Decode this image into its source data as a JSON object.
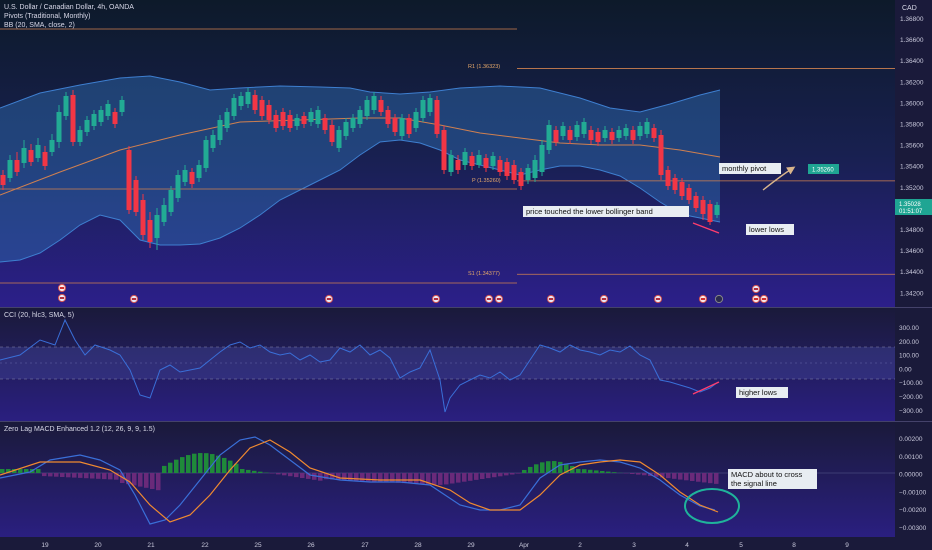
{
  "header": {
    "symbol": "U.S. Dollar / Canadian Dollar, 4h, OANDA",
    "pivots": "Pivots (Traditional, Monthly)",
    "bb": "BB (20, SMA, close, 2)",
    "currency": "CAD"
  },
  "price_axis": [
    "1.36800",
    "1.36600",
    "1.36400",
    "1.36200",
    "1.36000",
    "1.35800",
    "1.35600",
    "1.35400",
    "1.35200",
    "1.35000",
    "1.34800",
    "1.34600",
    "1.34400",
    "1.34200"
  ],
  "current_price": {
    "price": "1.35028",
    "countdown": "01:51:07"
  },
  "pivot_labels": {
    "r1": "R1 (1.36323)",
    "p": "P (1.35260)",
    "s1": "S1 (1.34377)"
  },
  "annotations": {
    "monthly_pivot": "monthly pivot",
    "target_price": "1.35260",
    "lower_band": "price touched the lower bollinger band",
    "lower_lows": "lower lows",
    "higher_lows": "higher lows",
    "macd_note_1": "MACD about to cross",
    "macd_note_2": "the signal line"
  },
  "cci_panel": {
    "title": "CCI (20, hlc3, SMA, 5)",
    "axis": [
      "300.00",
      "200.00",
      "100.00",
      "0.00",
      "−100.00",
      "−200.00",
      "−300.00"
    ]
  },
  "macd_panel": {
    "title": "Zero Lag MACD Enhanced 1.2 (12, 26, 9, 9, 1.5)",
    "axis": [
      "0.00200",
      "0.00100",
      "0.00000",
      "−0.00100",
      "−0.00200",
      "−0.00300"
    ]
  },
  "time_axis": [
    "19",
    "20",
    "21",
    "22",
    "25",
    "26",
    "27",
    "28",
    "29",
    "Apr",
    "2",
    "3",
    "4",
    "5",
    "8",
    "9"
  ],
  "chart_data": {
    "type": "line",
    "title": "U.S. Dollar / Canadian Dollar, 4h, OANDA",
    "x": [
      "19",
      "20",
      "21",
      "22",
      "25",
      "26",
      "27",
      "28",
      "29",
      "Apr",
      "2",
      "3",
      "4",
      "5",
      "8",
      "9"
    ],
    "price_levels": {
      "r1": 1.36323,
      "pivot": 1.3526,
      "s1": 1.34377,
      "last": 1.35028
    },
    "candles_close": [
      1.352,
      1.3535,
      1.3555,
      1.3585,
      1.361,
      1.357,
      1.3545,
      1.354,
      1.353,
      1.3505,
      1.347,
      1.3465,
      1.3485,
      1.3515,
      1.3535,
      1.357,
      1.3595,
      1.361,
      1.36,
      1.359,
      1.3585,
      1.358,
      1.3585,
      1.359,
      1.36,
      1.3595,
      1.359,
      1.3585,
      1.3575,
      1.3565,
      1.3545,
      1.352,
      1.3515,
      1.3525,
      1.354,
      1.3555,
      1.3565,
      1.357,
      1.3575,
      1.357,
      1.3565,
      1.3575,
      1.358,
      1.357,
      1.3545,
      1.3525,
      1.351,
      1.3495,
      1.3495,
      1.3503
    ],
    "ylim": [
      1.3415,
      1.3685
    ],
    "cci": {
      "ylim": [
        -300,
        300
      ]
    },
    "macd": {
      "ylim": [
        -0.003,
        0.002
      ]
    }
  }
}
